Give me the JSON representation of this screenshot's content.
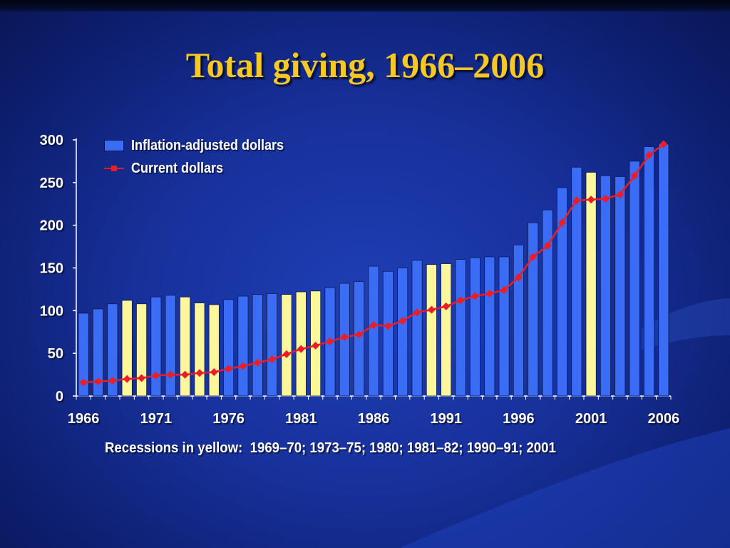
{
  "slide": {
    "title": "Total giving, 1966–2006",
    "footnote": "Recessions in yellow:  1969–70; 1973–75; 1980; 1981–82; 1990–91; 2001"
  },
  "colors": {
    "title": "#f5c825",
    "bar": "#3a6cf6",
    "recession_bar": "#fbf79a",
    "line": "#ee1c25",
    "text": "#ffffff"
  },
  "chart_data": {
    "type": "bar",
    "years": [
      1966,
      1967,
      1968,
      1969,
      1970,
      1971,
      1972,
      1973,
      1974,
      1975,
      1976,
      1977,
      1978,
      1979,
      1980,
      1981,
      1982,
      1983,
      1984,
      1985,
      1986,
      1987,
      1988,
      1989,
      1990,
      1991,
      1992,
      1993,
      1994,
      1995,
      1996,
      1997,
      1998,
      1999,
      2000,
      2001,
      2002,
      2003,
      2004,
      2005,
      2006
    ],
    "recession_years": [
      1969,
      1970,
      1973,
      1974,
      1975,
      1980,
      1981,
      1982,
      1990,
      1991,
      2001
    ],
    "series": [
      {
        "name": "Inflation-adjusted dollars",
        "kind": "bar",
        "values": [
          97,
          102,
          108,
          112,
          108,
          116,
          118,
          116,
          109,
          107,
          113,
          117,
          119,
          120,
          119,
          122,
          123,
          127,
          132,
          134,
          152,
          146,
          150,
          159,
          154,
          155,
          160,
          162,
          163,
          163,
          177,
          203,
          218,
          244,
          268,
          262,
          258,
          257,
          275,
          292,
          295
        ]
      },
      {
        "name": "Current dollars",
        "kind": "line",
        "values": [
          16,
          17,
          18,
          20,
          21,
          24,
          25,
          25,
          27,
          28,
          32,
          35,
          39,
          43,
          49,
          55,
          59,
          64,
          69,
          72,
          83,
          82,
          88,
          98,
          101,
          105,
          112,
          117,
          120,
          124,
          139,
          163,
          176,
          203,
          229,
          230,
          231,
          236,
          258,
          282,
          295
        ]
      }
    ],
    "x_tick_labels": [
      "1966",
      "1971",
      "1976",
      "1981",
      "1986",
      "1991",
      "1996",
      "2001",
      "2006"
    ],
    "y_ticks": [
      0,
      50,
      100,
      150,
      200,
      250,
      300
    ],
    "ylim": [
      0,
      300
    ],
    "legend_position": "top-left",
    "grid": false
  }
}
